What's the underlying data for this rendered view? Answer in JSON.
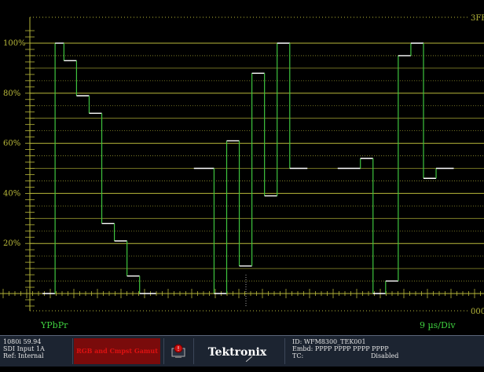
{
  "display": {
    "corner_top_right": "3FF",
    "corner_bottom_right": "000",
    "mode_label": "YPbPr",
    "sweep_label": "9 µs/Div",
    "y_axis_ticks": [
      "100%",
      "80%",
      "60%",
      "40%",
      "20%"
    ],
    "colors": {
      "graticule": "#b8b83a",
      "waveform": "#ffffff",
      "edge": "#3ec43e",
      "label": "#3fd13f",
      "background": "#000000"
    }
  },
  "chart_data": {
    "type": "line",
    "title": "",
    "ylabel": "",
    "xlabel": "",
    "ylim": [
      0,
      100
    ],
    "grid": true,
    "series": [
      {
        "points": [
          [
            0.5,
            0
          ],
          [
            1.0,
            0
          ],
          [
            1.0,
            100
          ],
          [
            1.35,
            100
          ],
          [
            1.35,
            93
          ],
          [
            1.85,
            93
          ],
          [
            1.85,
            79
          ],
          [
            2.35,
            79
          ],
          [
            2.35,
            72
          ],
          [
            2.85,
            72
          ],
          [
            2.85,
            28
          ],
          [
            3.35,
            28
          ],
          [
            3.35,
            21
          ],
          [
            3.85,
            21
          ],
          [
            3.85,
            7
          ],
          [
            4.35,
            7
          ],
          [
            4.35,
            0
          ],
          [
            5.0,
            0
          ]
        ]
      },
      {
        "points": [
          [
            6.5,
            50
          ],
          [
            7.3,
            50
          ],
          [
            7.3,
            0
          ],
          [
            7.8,
            0
          ],
          [
            7.8,
            61
          ],
          [
            8.3,
            61
          ],
          [
            8.3,
            11
          ],
          [
            8.8,
            11
          ],
          [
            8.8,
            88
          ],
          [
            9.3,
            88
          ],
          [
            9.3,
            39
          ],
          [
            9.8,
            39
          ],
          [
            9.8,
            100
          ],
          [
            10.3,
            100
          ],
          [
            10.3,
            50
          ],
          [
            11.0,
            50
          ]
        ]
      },
      {
        "points": [
          [
            12.2,
            50
          ],
          [
            13.1,
            50
          ],
          [
            13.1,
            54
          ],
          [
            13.6,
            54
          ],
          [
            13.6,
            0
          ],
          [
            14.1,
            0
          ],
          [
            14.1,
            5
          ],
          [
            14.6,
            5
          ],
          [
            14.6,
            95
          ],
          [
            15.1,
            95
          ],
          [
            15.1,
            100
          ],
          [
            15.6,
            100
          ],
          [
            15.6,
            46
          ],
          [
            16.1,
            46
          ],
          [
            16.1,
            50
          ],
          [
            16.8,
            50
          ]
        ]
      }
    ]
  },
  "status": {
    "format": "1080i 59.94",
    "input": "SDI Input 1A",
    "ref": "Ref: Internal",
    "alarm": "RGB and Cmpst Gamut",
    "brand": "Tektronix",
    "id_line": "ID: WFM8300_TEK001",
    "embd_line": "Embd: PPPP PPPP PPPP PPPP",
    "tc_label": "TC:",
    "tc_value": "Disabled",
    "icon_name": "monitor-alarm-icon"
  }
}
